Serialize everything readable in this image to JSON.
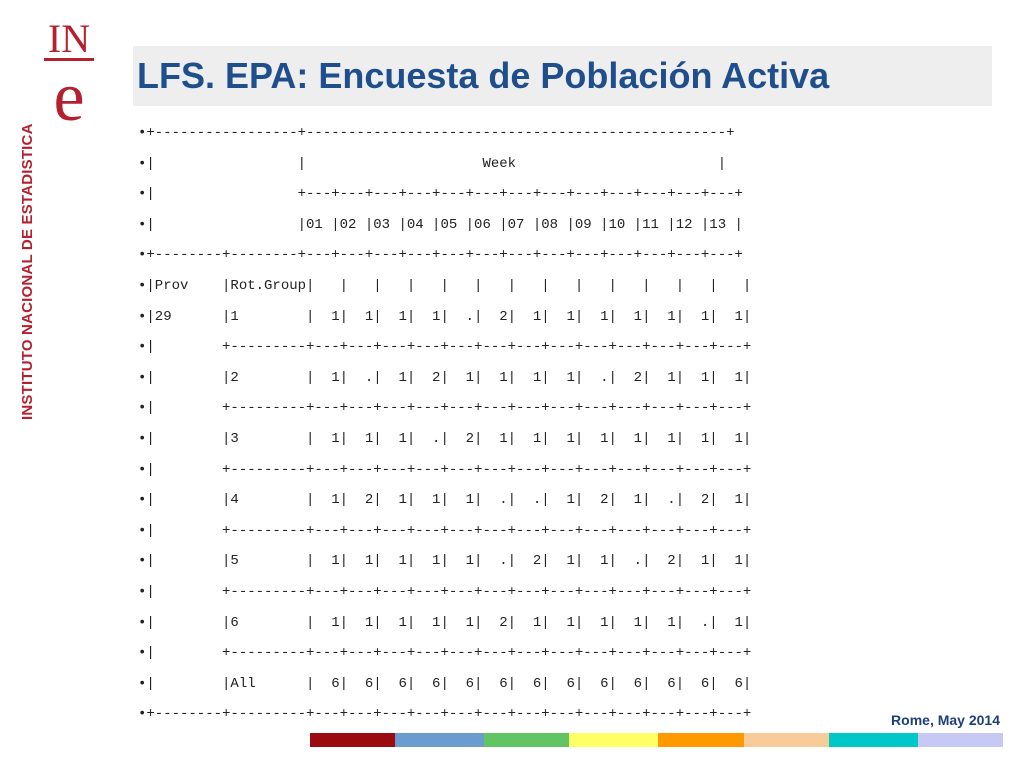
{
  "logo": {
    "letters_top": "IN",
    "letter_bottom": "e"
  },
  "side_label": "INSTITUTO NACIONAL DE ESTADISTICA",
  "title": "LFS.  EPA: Encuesta de Población Activa",
  "table_lines": [
    "•+-----------------+--------------------------------------------------+",
    "•|                 |                     Week                        |",
    "•|                 +---+---+---+---+---+---+---+---+---+---+---+---+---+",
    "•|                 |01 |02 |03 |04 |05 |06 |07 |08 |09 |10 |11 |12 |13 |",
    "•+--------+--------+---+---+---+---+---+---+---+---+---+---+---+---+---+",
    "•|Prov    |Rot.Group|   |   |   |   |   |   |   |   |   |   |   |   |   |",
    "•|29      |1        |  1|  1|  1|  1|  .|  2|  1|  1|  1|  1|  1|  1|  1|",
    "•|        +---------+---+---+---+---+---+---+---+---+---+---+---+---+---+",
    "•|        |2        |  1|  .|  1|  2|  1|  1|  1|  1|  .|  2|  1|  1|  1|",
    "•|        +---------+---+---+---+---+---+---+---+---+---+---+---+---+---+",
    "•|        |3        |  1|  1|  1|  .|  2|  1|  1|  1|  1|  1|  1|  1|  1|",
    "•|        +---------+---+---+---+---+---+---+---+---+---+---+---+---+---+",
    "•|        |4        |  1|  2|  1|  1|  1|  .|  .|  1|  2|  1|  .|  2|  1|",
    "•|        +---------+---+---+---+---+---+---+---+---+---+---+---+---+---+",
    "•|        |5        |  1|  1|  1|  1|  1|  .|  2|  1|  1|  .|  2|  1|  1|",
    "•|        +---------+---+---+---+---+---+---+---+---+---+---+---+---+---+",
    "•|        |6        |  1|  1|  1|  1|  1|  2|  1|  1|  1|  1|  1|  .|  1|",
    "•|        +---------+---+---+---+---+---+---+---+---+---+---+---+---+---+",
    "•|        |All      |  6|  6|  6|  6|  6|  6|  6|  6|  6|  6|  6|  6|  6|",
    "•+--------+---------+---+---+---+---+---+---+---+---+---+---+---+---+---+"
  ],
  "footer": "Rome, May 2014",
  "stripe_colors": [
    "#9b0a0f",
    "#6a9ccf",
    "#62c462",
    "#ffff66",
    "#ff9900",
    "#f8cc99",
    "#00c8c8",
    "#c8c8f5"
  ],
  "colors": {
    "brand_red": "#b5202e",
    "title_blue": "#1f4e8c",
    "title_bg": "#eeeeee"
  }
}
